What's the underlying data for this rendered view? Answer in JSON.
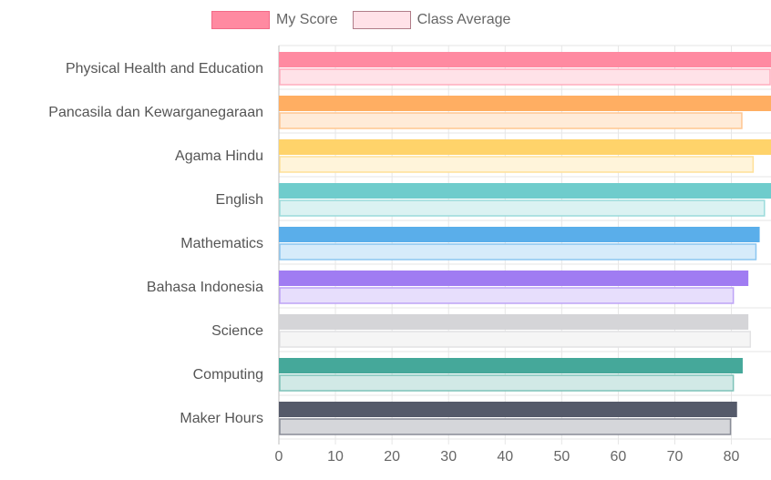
{
  "legend": {
    "items": [
      {
        "label": "My Score",
        "fill": "#ff8aa1",
        "border": "#f26a87"
      },
      {
        "label": "Class Average",
        "fill": "#ffe2e8",
        "border": "#b07c88"
      }
    ]
  },
  "chart_data": {
    "type": "bar",
    "orientation": "horizontal",
    "title": "",
    "xlabel": "",
    "ylabel": "",
    "xlim": [
      0,
      87
    ],
    "xticks": [
      0,
      10,
      20,
      30,
      40,
      50,
      60,
      70,
      80
    ],
    "grid": true,
    "legend_position": "top",
    "categories": [
      "Physical Health and Education",
      "Pancasila dan Kewarganegaraan",
      "Agama Hindu",
      "English",
      "Mathematics",
      "Bahasa Indonesia",
      "Science",
      "Computing",
      "Maker Hours"
    ],
    "colors": [
      "#ff8aa1",
      "#ffae62",
      "#ffd36a",
      "#6fcccc",
      "#5aaeea",
      "#a07cf2",
      "#d5d5d8",
      "#45a89a",
      "#555a6a"
    ],
    "series": [
      {
        "name": "My Score",
        "values": [
          88,
          88,
          88,
          88,
          85,
          83,
          83,
          82,
          81
        ]
      },
      {
        "name": "Class Average",
        "values": [
          88,
          82,
          84,
          86,
          84.5,
          80.5,
          83.5,
          80.5,
          80
        ]
      }
    ]
  }
}
